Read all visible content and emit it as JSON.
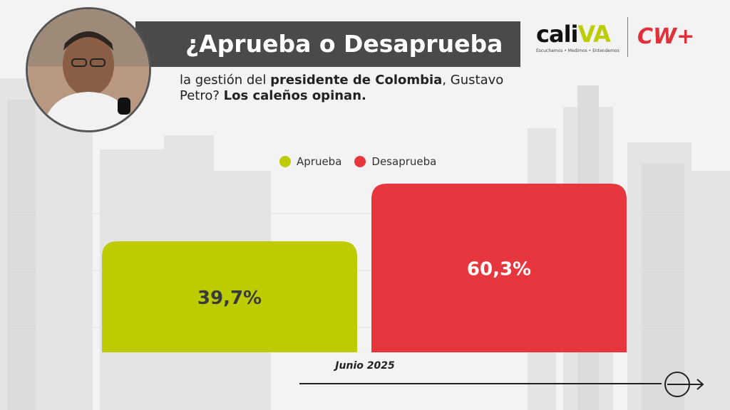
{
  "header": {
    "title": "¿Aprueba o Desaprueba",
    "subtitle_parts": {
      "p1": "la gestión del ",
      "p2": "presidente de Colombia",
      "p3": ", Gustavo Petro? ",
      "p4": "Los caleños opinan."
    }
  },
  "logos": {
    "caliva_main": "cali",
    "caliva_hl": "VA",
    "caliva_tagline": "Escuchamos • Medimos • Entendemos",
    "cw": "CW+"
  },
  "colors": {
    "aprueba": "#bccc00",
    "desaprueba": "#e8363f",
    "title_band": "#4a4a4a"
  },
  "chart_data": {
    "type": "bar",
    "categories": [
      "Junio 2025"
    ],
    "series": [
      {
        "name": "Aprueba",
        "values": [
          39.7
        ],
        "label": "39,7%"
      },
      {
        "name": "Desaprueba",
        "values": [
          60.3
        ],
        "label": "60,3%"
      }
    ],
    "xlabel": "Junio 2025",
    "ylim": [
      0,
      60.3
    ],
    "grid": false,
    "legend": "top"
  },
  "icons": {
    "next": "arrow-right-circle-icon"
  }
}
